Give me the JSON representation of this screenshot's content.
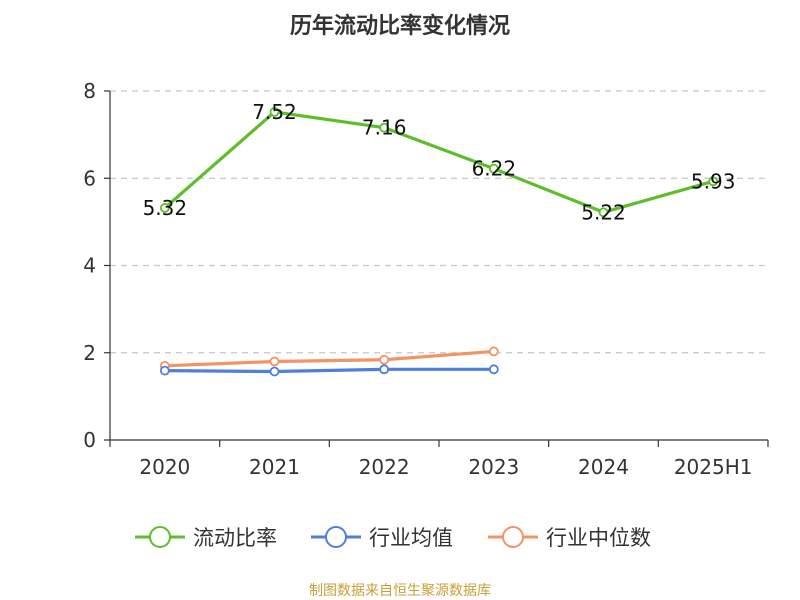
{
  "chart_data": {
    "type": "line",
    "title": "历年流动比率变化情况",
    "categories": [
      "2020",
      "2021",
      "2022",
      "2023",
      "2024",
      "2025H1"
    ],
    "ylim": [
      0,
      8
    ],
    "yticks": [
      0,
      2,
      4,
      6,
      8
    ],
    "grid": true,
    "legend_position": "bottom",
    "series": [
      {
        "name": "流动比率",
        "color": "#5cbf2a",
        "values": [
          5.32,
          7.52,
          7.16,
          6.22,
          5.22,
          5.93
        ],
        "show_labels": true
      },
      {
        "name": "行业均值",
        "color": "#4f7fdc",
        "values": [
          1.59,
          1.57,
          1.62,
          1.62,
          null,
          null
        ],
        "show_labels": false
      },
      {
        "name": "行业中位数",
        "color": "#f49363",
        "values": [
          1.7,
          1.8,
          1.84,
          2.03,
          null,
          null
        ],
        "show_labels": false
      }
    ]
  },
  "source_text": "制图数据来自恒生聚源数据库"
}
